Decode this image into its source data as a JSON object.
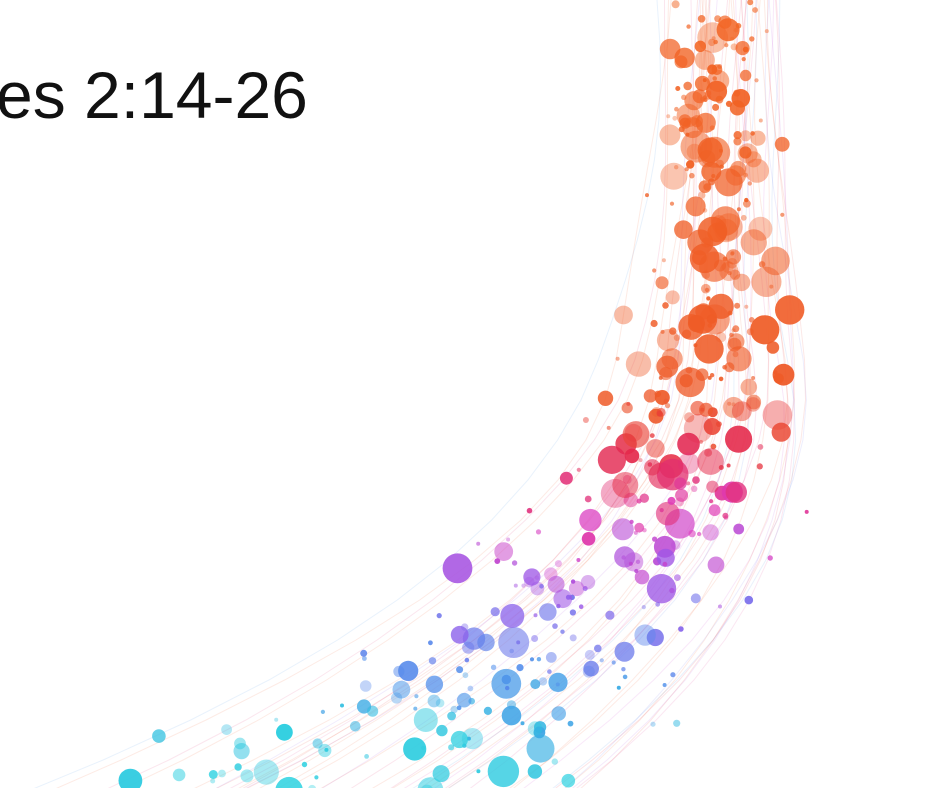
{
  "title": "es 2:14-26"
}
